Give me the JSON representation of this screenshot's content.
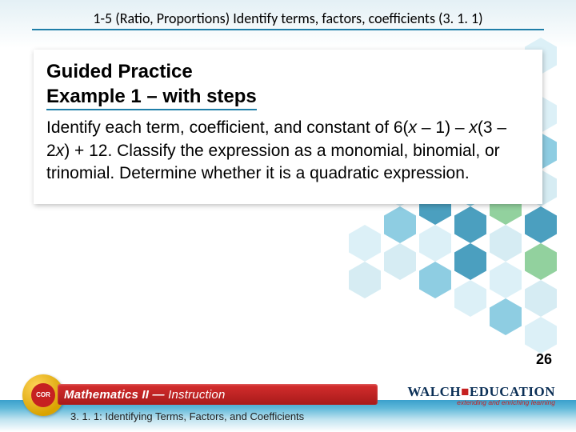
{
  "header": {
    "title": "1-5 (Ratio, Proportions) Identify terms, factors, coefficients (3. 1. 1)",
    "underline_color": "#1f7ea8"
  },
  "content": {
    "heading1": "Guided Practice",
    "heading2": "Example 1 – with steps",
    "body_html": "Identify each term, coefficient, and constant of 6(<i class='var'>x</i> – 1) – <i class='var'>x</i>(3 – 2<i class='var'>x</i>) + 12. Classify the expression as a monomial, binomial, or trinomial. Determine whether it is a quadratic expression."
  },
  "page_number": "26",
  "footer": {
    "series_title_html": "<span>Mathematics II — </span><span class='instr'>Instruction</span>",
    "subtitle": "3. 1. 1: Identifying Terms, Factors, and Coefficients",
    "seal_text": "COR",
    "walch_name": "WALCH",
    "walch_tag": "extending and enriching learning",
    "red_bar_color": "#c62121",
    "grad_colors": [
      "#3aa0cc",
      "#ffffff"
    ]
  },
  "colors": {
    "hex_light": "#d7eef6",
    "hex_mid": "#7bc5de",
    "hex_dark": "#2c8fb5",
    "hex_green": "#7fc98e"
  }
}
